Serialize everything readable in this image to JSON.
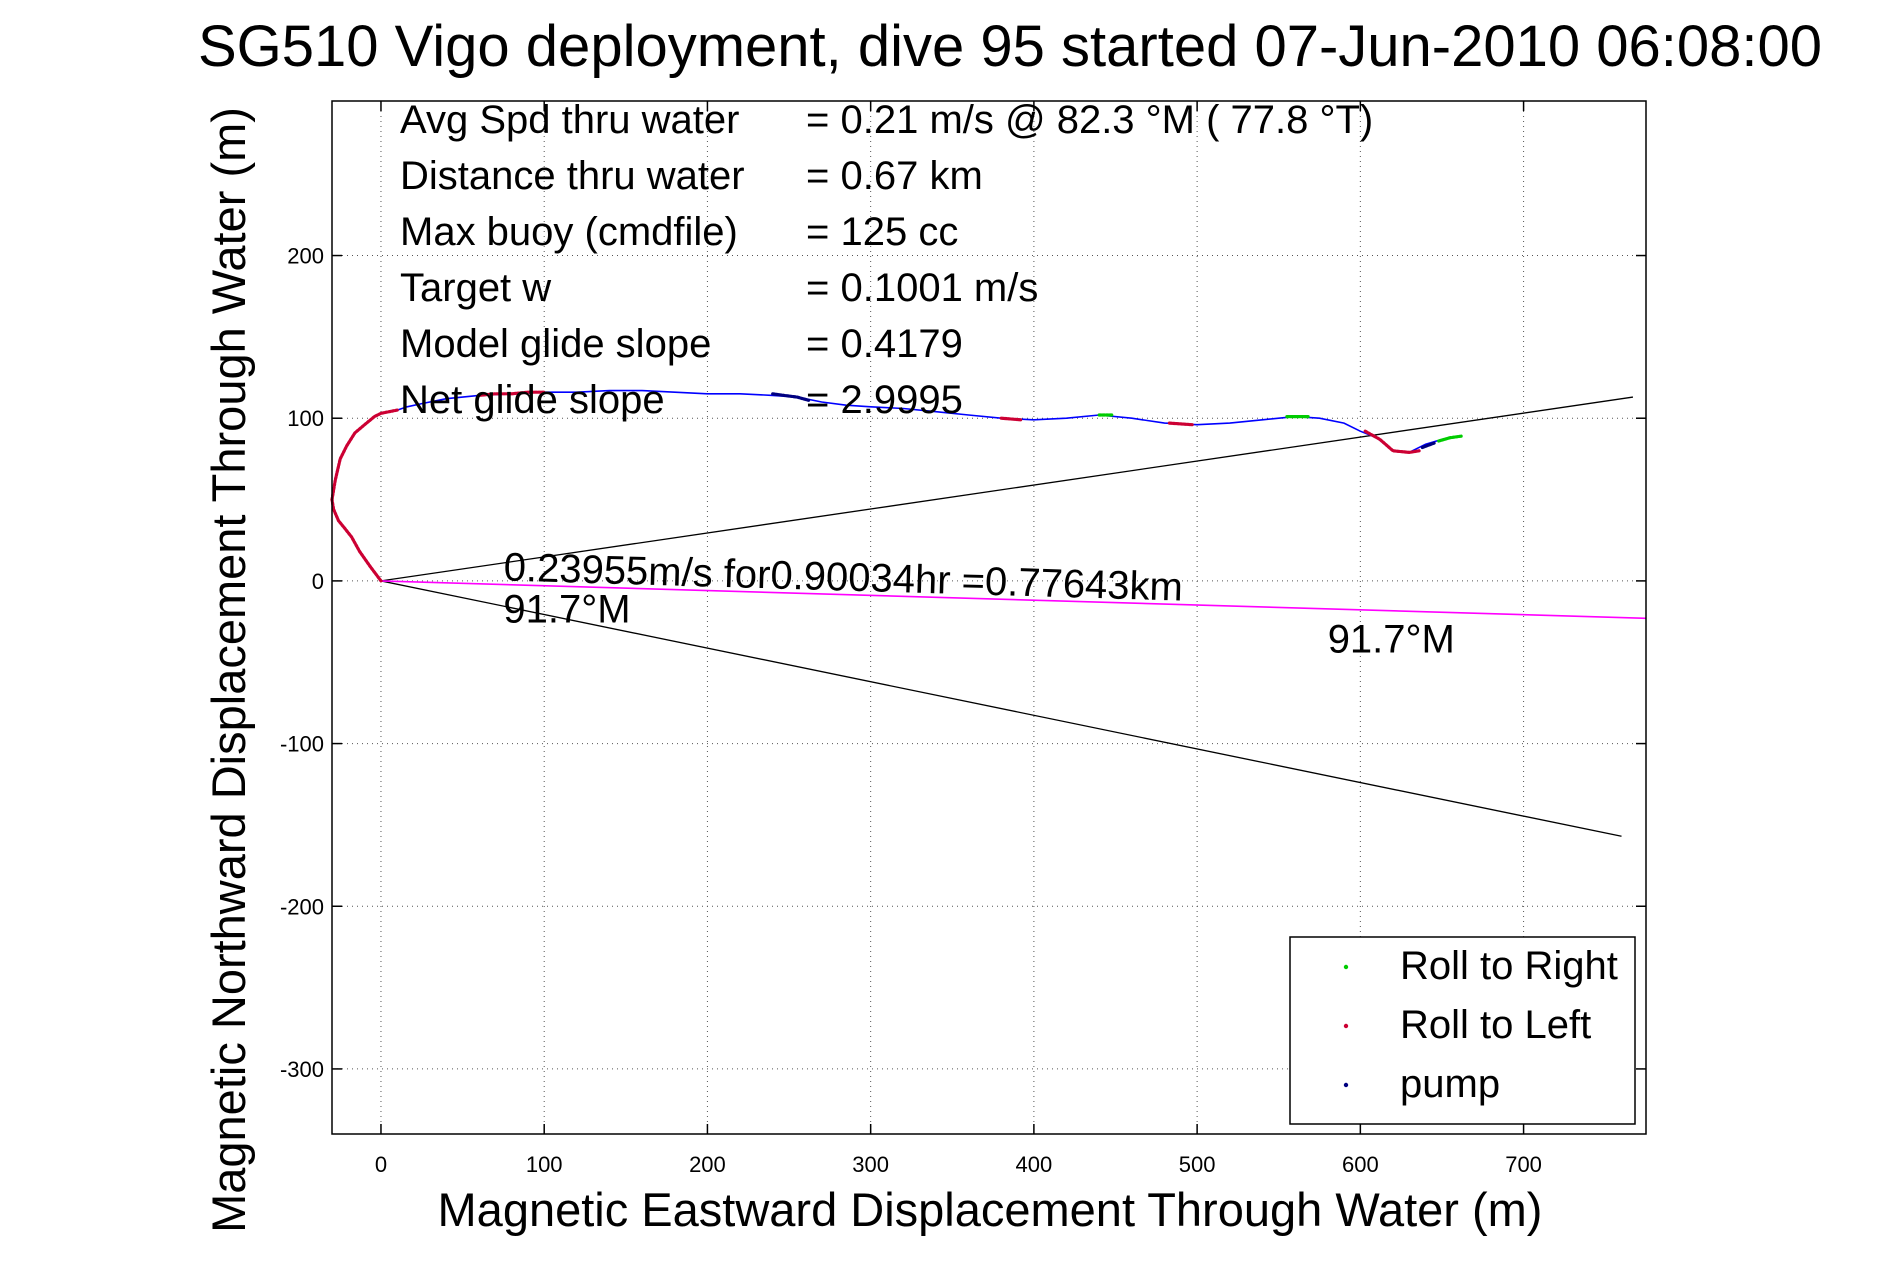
{
  "chart_data": {
    "type": "line",
    "title": "SG510 Vigo deployment, dive 95 started 07-Jun-2010 06:08:00",
    "xlabel": "Magnetic Eastward Displacement Through Water (m)",
    "ylabel": "Magnetic Northward Displacement Through Water (m)",
    "xlim": [
      -30,
      775
    ],
    "ylim": [
      -340,
      295
    ],
    "xticks": [
      0,
      100,
      200,
      300,
      400,
      500,
      600,
      700
    ],
    "yticks": [
      -300,
      -200,
      -100,
      0,
      100,
      200
    ],
    "grid": true,
    "info_lines": [
      {
        "label": "Avg Spd thru water",
        "value": "=  0.21 m/s @  82.3 °M ( 77.8 °T)"
      },
      {
        "label": "Distance thru water",
        "value": "=  0.67 km"
      },
      {
        "label": "Max buoy (cmdfile)",
        "value": "= 125 cc"
      },
      {
        "label": "Target w",
        "value": "= 0.1001 m/s"
      },
      {
        "label": "Model glide slope",
        "value": "= 0.4179"
      },
      {
        "label": "Net glide slope",
        "value": "= 2.9995"
      }
    ],
    "current_annotation": {
      "line1": "0.23955m/s for0.90034hr =0.77643km",
      "line2": "91.7°M",
      "x": 75,
      "y": -12
    },
    "heading_label": {
      "text": "91.7°M",
      "x": 580,
      "y": -44
    },
    "heading_line": {
      "color": "#ff00ff",
      "x": [
        0,
        775
      ],
      "y": [
        0,
        -23
      ]
    },
    "wedge_lines": {
      "color": "#000000",
      "upper": {
        "x": [
          0,
          767
        ],
        "y": [
          0,
          113
        ]
      },
      "lower": {
        "x": [
          0,
          760
        ],
        "y": [
          0,
          -157
        ]
      }
    },
    "track": {
      "color": "#0000ff",
      "x": [
        0,
        -6,
        -13,
        -18,
        -22,
        -26,
        -29,
        -30,
        -29,
        -28,
        -27,
        -25,
        -21,
        -16,
        -10,
        -4,
        0,
        5,
        10,
        16,
        25,
        40,
        60,
        80,
        100,
        120,
        140,
        160,
        180,
        200,
        220,
        240,
        255,
        270,
        285,
        300,
        320,
        340,
        360,
        380,
        400,
        420,
        440,
        460,
        480,
        500,
        520,
        540,
        560,
        575,
        590,
        600,
        610,
        620,
        630,
        640,
        650,
        660
      ],
      "y": [
        0,
        8,
        18,
        27,
        32,
        37,
        44,
        50,
        56,
        62,
        68,
        75,
        83,
        91,
        96,
        101,
        103,
        104,
        105,
        107,
        109,
        112,
        114,
        115,
        116,
        116,
        117,
        117,
        116,
        115,
        115,
        114,
        113,
        110,
        108,
        107,
        106,
        104,
        102,
        100,
        99,
        100,
        102,
        100,
        97,
        96,
        97,
        99,
        101,
        100,
        97,
        92,
        88,
        80,
        79,
        84,
        87,
        89
      ]
    },
    "roll_segments": [
      {
        "series": "Roll to Left",
        "x": [
          -30,
          -28,
          -25,
          -21,
          -16,
          -10,
          -4,
          0,
          5,
          10
        ],
        "y": [
          50,
          62,
          75,
          83,
          91,
          96,
          101,
          103,
          104,
          105
        ]
      },
      {
        "series": "Roll to Left",
        "x": [
          0,
          -6,
          -13,
          -18,
          -22,
          -26,
          -29,
          -30
        ],
        "y": [
          0,
          8,
          18,
          27,
          32,
          37,
          44,
          50
        ]
      },
      {
        "series": "Roll to Left",
        "x": [
          60,
          70,
          80,
          90,
          100
        ],
        "y": [
          114,
          115,
          115,
          116,
          116
        ]
      },
      {
        "series": "Roll to Left",
        "x": [
          380,
          392
        ],
        "y": [
          100,
          99
        ]
      },
      {
        "series": "Roll to Left",
        "x": [
          483,
          497
        ],
        "y": [
          97,
          96
        ]
      },
      {
        "series": "Roll to Left",
        "x": [
          603,
          612,
          620,
          630,
          636
        ],
        "y": [
          92,
          87,
          80,
          79,
          80
        ]
      },
      {
        "series": "Roll to Right",
        "x": [
          440,
          448
        ],
        "y": [
          102,
          102
        ]
      },
      {
        "series": "Roll to Right",
        "x": [
          555,
          568
        ],
        "y": [
          101,
          101
        ]
      },
      {
        "series": "Roll to Right",
        "x": [
          648,
          655,
          662
        ],
        "y": [
          86,
          88,
          89
        ]
      },
      {
        "series": "pump",
        "x": [
          240,
          247,
          255,
          262
        ],
        "y": [
          115,
          114,
          113,
          111
        ]
      },
      {
        "series": "pump",
        "x": [
          638,
          646
        ],
        "y": [
          82,
          85
        ]
      }
    ],
    "legend": {
      "placement": "bottom-right",
      "entries": [
        {
          "name": "Roll to Right",
          "color": "#00cc00"
        },
        {
          "name": "Roll to Left",
          "color": "#cc0033"
        },
        {
          "name": "pump",
          "color": "#000080"
        }
      ]
    }
  }
}
